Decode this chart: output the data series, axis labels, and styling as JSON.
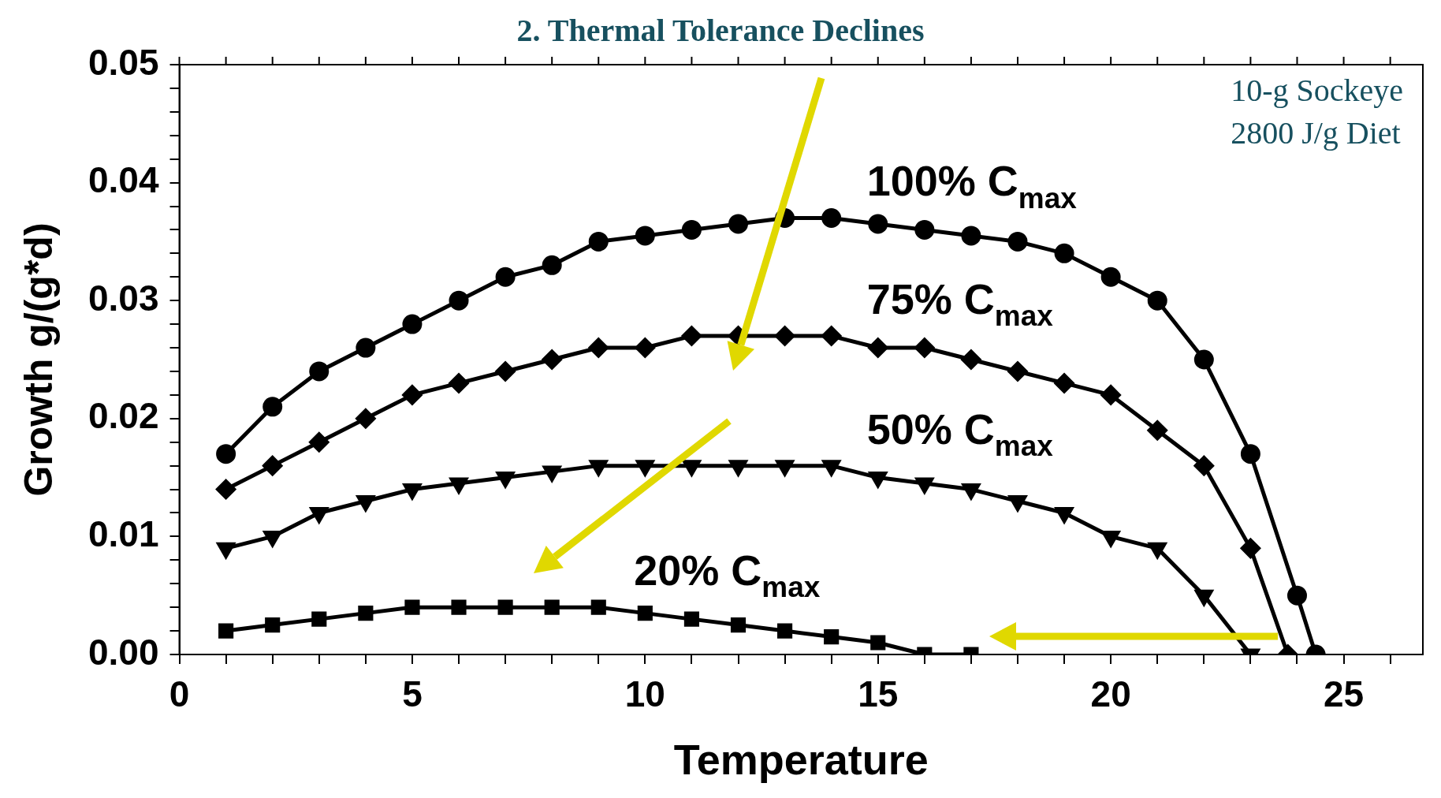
{
  "chart_data": {
    "type": "line",
    "title": "2. Thermal Tolerance Declines",
    "xlabel": "Temperature",
    "ylabel": "Growth g/(g*d)",
    "annotations": [
      "10-g Sockeye",
      "2800 J/g Diet"
    ],
    "xlim": [
      0,
      26.7
    ],
    "xticks": [
      0,
      {
        "value": 1,
        "label": null
      },
      {
        "value": 2,
        "label": null
      },
      {
        "value": 3,
        "label": null
      },
      {
        "value": 4,
        "label": null
      },
      5,
      {
        "value": 6,
        "label": null
      },
      {
        "value": 7,
        "label": null
      },
      {
        "value": 8,
        "label": null
      },
      {
        "value": 9,
        "label": null
      },
      10,
      {
        "value": 11,
        "label": null
      },
      {
        "value": 12,
        "label": null
      },
      {
        "value": 13,
        "label": null
      },
      {
        "value": 14,
        "label": null
      },
      15,
      {
        "value": 16,
        "label": null
      },
      {
        "value": 17,
        "label": null
      },
      {
        "value": 18,
        "label": null
      },
      {
        "value": 19,
        "label": null
      },
      20,
      {
        "value": 21,
        "label": null
      },
      {
        "value": 22,
        "label": null
      },
      {
        "value": 23,
        "label": null
      },
      {
        "value": 24,
        "label": null
      },
      25,
      {
        "value": 26,
        "label": null
      }
    ],
    "ylim": [
      0,
      0.05
    ],
    "yticks": [
      {
        "value": 0,
        "label": "0.00"
      },
      {
        "value": 0.002,
        "label": null
      },
      {
        "value": 0.004,
        "label": null
      },
      {
        "value": 0.006,
        "label": null
      },
      {
        "value": 0.008,
        "label": null
      },
      0.01,
      {
        "value": 0.012,
        "label": null
      },
      {
        "value": 0.014,
        "label": null
      },
      {
        "value": 0.016,
        "label": null
      },
      {
        "value": 0.018,
        "label": null
      },
      0.02,
      {
        "value": 0.022,
        "label": null
      },
      {
        "value": 0.024,
        "label": null
      },
      {
        "value": 0.026,
        "label": null
      },
      {
        "value": 0.028,
        "label": null
      },
      0.03,
      {
        "value": 0.032,
        "label": null
      },
      {
        "value": 0.034,
        "label": null
      },
      {
        "value": 0.036,
        "label": null
      },
      {
        "value": 0.038,
        "label": null
      },
      0.04,
      {
        "value": 0.042,
        "label": null
      },
      {
        "value": 0.044,
        "label": null
      },
      {
        "value": 0.046,
        "label": null
      },
      {
        "value": 0.048,
        "label": null
      },
      0.05
    ],
    "grid": false,
    "legend": false,
    "line_style": "solid",
    "series": [
      {
        "name": "100% C$_{max}$",
        "color": "#000000",
        "marker": "circle",
        "x": [
          1,
          2,
          3,
          4,
          5,
          6,
          7,
          8,
          9,
          10,
          11,
          12,
          13,
          14,
          15,
          16,
          17,
          18,
          19,
          20,
          21,
          22,
          23,
          24,
          24.4
        ],
        "values": [
          0.017,
          0.021,
          0.024,
          0.026,
          0.028,
          0.03,
          0.032,
          0.033,
          0.035,
          0.0355,
          0.036,
          0.0365,
          0.037,
          0.037,
          0.0365,
          0.036,
          0.0355,
          0.035,
          0.034,
          0.032,
          0.03,
          0.025,
          0.017,
          0.005,
          0
        ]
      },
      {
        "name": "75% C$_{max}$",
        "color": "#000000",
        "marker": "diamond",
        "x": [
          1,
          2,
          3,
          4,
          5,
          6,
          7,
          8,
          9,
          10,
          11,
          12,
          13,
          14,
          15,
          16,
          17,
          18,
          19,
          20,
          21,
          22,
          23,
          23.8
        ],
        "values": [
          0.014,
          0.016,
          0.018,
          0.02,
          0.022,
          0.023,
          0.024,
          0.025,
          0.026,
          0.026,
          0.027,
          0.027,
          0.027,
          0.027,
          0.026,
          0.026,
          0.025,
          0.024,
          0.023,
          0.022,
          0.019,
          0.016,
          0.009,
          0
        ]
      },
      {
        "name": "50% C$_{max}$",
        "color": "#000000",
        "marker": "triangle",
        "x": [
          1,
          2,
          3,
          4,
          5,
          6,
          7,
          8,
          9,
          10,
          11,
          12,
          13,
          14,
          15,
          16,
          17,
          18,
          19,
          20,
          21,
          22,
          23
        ],
        "values": [
          0.009,
          0.01,
          0.012,
          0.013,
          0.014,
          0.0145,
          0.015,
          0.0155,
          0.016,
          0.016,
          0.016,
          0.016,
          0.016,
          0.016,
          0.015,
          0.0145,
          0.014,
          0.013,
          0.012,
          0.01,
          0.009,
          0.005,
          0
        ]
      },
      {
        "name": "20% C$_{max}$",
        "color": "#000000",
        "marker": "square",
        "x": [
          1,
          2,
          3,
          4,
          5,
          6,
          7,
          8,
          9,
          10,
          11,
          12,
          13,
          14,
          15,
          16,
          17
        ],
        "values": [
          0.002,
          0.0025,
          0.003,
          0.0035,
          0.004,
          0.004,
          0.004,
          0.004,
          0.004,
          0.0035,
          0.003,
          0.0025,
          0.002,
          0.0015,
          0.001,
          0,
          0
        ]
      }
    ]
  }
}
